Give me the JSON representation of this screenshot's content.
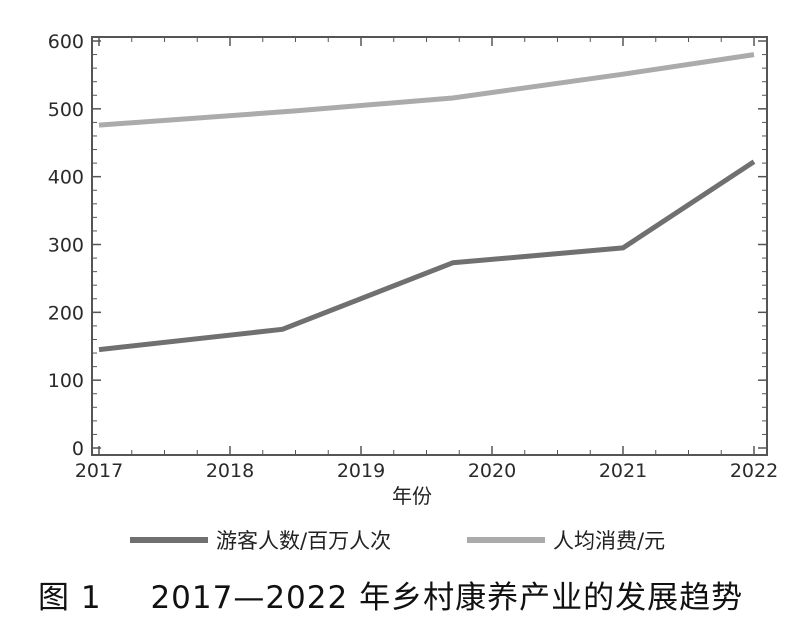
{
  "chart_data": {
    "type": "line",
    "x": [
      2017,
      2018,
      2019,
      2020,
      2021,
      2022
    ],
    "x_tick_labels": [
      "2017",
      "2018",
      "2019",
      "2020",
      "2021",
      "2022"
    ],
    "xlabel": "年份",
    "ylabel": "",
    "ylim": [
      0,
      600
    ],
    "y_ticks": [
      0,
      100,
      200,
      300,
      400,
      500,
      600
    ],
    "y_tick_labels": [
      "0",
      "100",
      "200",
      "300",
      "400",
      "500",
      "600"
    ],
    "series": [
      {
        "name": "游客人数/百万人次",
        "color": "#707070",
        "points": [
          [
            2017,
            145
          ],
          [
            2018.4,
            175
          ],
          [
            2019.7,
            273
          ],
          [
            2021,
            295
          ],
          [
            2022,
            422
          ]
        ]
      },
      {
        "name": "人均消费/元",
        "color": "#ababab",
        "points": [
          [
            2017,
            476
          ],
          [
            2018.5,
            497
          ],
          [
            2019.7,
            516
          ],
          [
            2021,
            551
          ],
          [
            2022,
            580
          ]
        ]
      }
    ],
    "legend_position": "bottom",
    "grid": false
  },
  "figure": {
    "label": "图 1",
    "caption": "2017—2022 年乡村康养产业的发展趋势"
  }
}
